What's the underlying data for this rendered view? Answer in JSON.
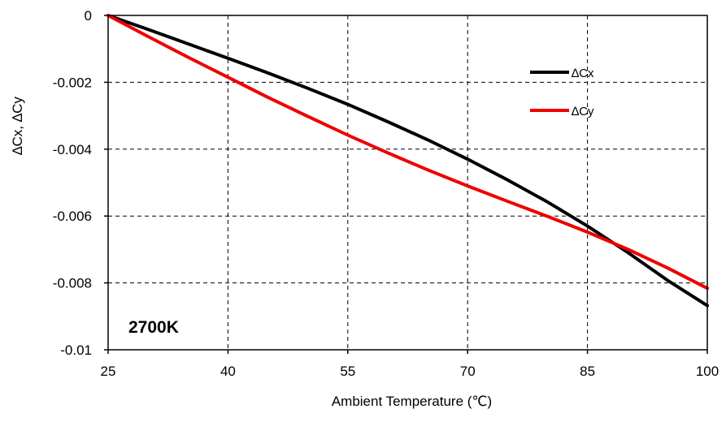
{
  "chart_data": {
    "type": "line",
    "title": "",
    "xlabel": "Ambient Temperature  (℃)",
    "ylabel": "∆Cx, ∆Cy",
    "annotation": "2700K",
    "xlim": [
      25,
      100
    ],
    "ylim": [
      -0.01,
      0
    ],
    "x_ticks": [
      25,
      40,
      55,
      70,
      85,
      100
    ],
    "x_tick_labels": [
      "25",
      "40",
      "55",
      "70",
      "85",
      "100"
    ],
    "y_ticks": [
      0,
      -0.002,
      -0.004,
      -0.006,
      -0.008,
      -0.01
    ],
    "y_tick_labels": [
      "0",
      "-0.002",
      "-0.004",
      "-0.006",
      "-0.008",
      "-0.01"
    ],
    "grid": true,
    "grid_style": "dashed",
    "legend_position": "top-right",
    "series": [
      {
        "name": "∆Cx",
        "color": "#000000",
        "x": [
          25,
          30,
          35,
          40,
          45,
          50,
          55,
          60,
          65,
          70,
          75,
          80,
          85,
          90,
          95,
          100
        ],
        "y": [
          0,
          -0.00042,
          -0.00085,
          -0.00128,
          -0.00172,
          -0.00218,
          -0.00266,
          -0.00318,
          -0.00372,
          -0.0043,
          -0.00492,
          -0.00558,
          -0.0063,
          -0.00708,
          -0.00792,
          -0.00868
        ]
      },
      {
        "name": "∆Cy",
        "color": "#ee0000",
        "x": [
          25,
          30,
          35,
          40,
          45,
          50,
          55,
          60,
          65,
          70,
          75,
          80,
          85,
          90,
          95,
          100
        ],
        "y": [
          0,
          -0.00063,
          -0.00125,
          -0.00185,
          -0.00245,
          -0.00302,
          -0.00358,
          -0.00411,
          -0.00462,
          -0.0051,
          -0.00556,
          -0.00601,
          -0.00648,
          -0.00699,
          -0.00755,
          -0.00816
        ]
      }
    ]
  }
}
